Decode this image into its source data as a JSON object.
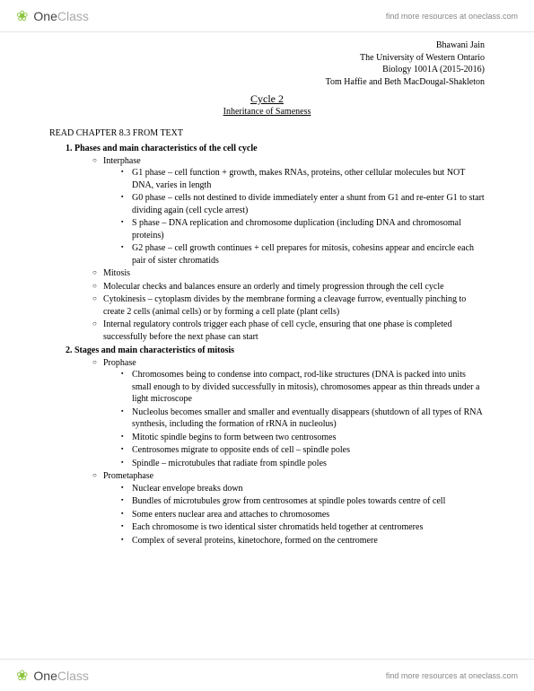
{
  "brand": {
    "one": "One",
    "class": "Class",
    "link": "find more resources at oneclass.com"
  },
  "meta": {
    "author": "Bhawani Jain",
    "university": "The University of Western Ontario",
    "course": "Biology 1001A (2015-2016)",
    "instructors": "Tom Haffie and Beth MacDougal-Shakleton"
  },
  "title": "Cycle 2",
  "subtitle": "Inheritance of Sameness",
  "read_note": "READ CHAPTER 8.3 FROM TEXT",
  "section1": {
    "heading": "Phases and main characteristics of the cell cycle",
    "interphase_label": "Interphase",
    "interphase": {
      "g1": "G1 phase – cell function + growth, makes RNAs, proteins, other cellular molecules but NOT DNA, varies in length",
      "g0": "G0 phase – cells not destined to divide immediately enter a shunt from G1 and re-enter G1 to start dividing again (cell cycle arrest)",
      "s": "S phase – DNA replication and chromosome duplication (including DNA and chromosomal proteins)",
      "g2": "G2 phase – cell growth continues + cell prepares for mitosis, cohesins appear and encircle each pair of sister chromatids"
    },
    "mitosis_label": "Mitosis",
    "checks": "Molecular checks and balances ensure an orderly and timely progression through the cell cycle",
    "cytokinesis": "Cytokinesis – cytoplasm divides by the membrane forming a cleavage furrow, eventually pinching to create 2 cells (animal cells) or by forming a cell plate (plant cells)",
    "regulatory": "Internal regulatory controls trigger each phase of cell cycle, ensuring that one phase is completed successfully before the next phase can start"
  },
  "section2": {
    "heading": "Stages and main characteristics of mitosis",
    "prophase_label": "Prophase",
    "prophase": {
      "p1": "Chromosomes being to condense into compact, rod-like structures (DNA is packed into units small enough to by divided successfully in mitosis), chromosomes appear as thin threads under a light microscope",
      "p2": "Nucleolus becomes smaller and smaller and eventually disappears (shutdown of all types of RNA synthesis, including the formation of rRNA in nucleolus)",
      "p3": "Mitotic spindle begins to form between two centrosomes",
      "p4": "Centrosomes migrate to opposite ends of cell – spindle poles",
      "p5": "Spindle – microtubules that radiate from spindle poles"
    },
    "prometaphase_label": "Prometaphase",
    "prometaphase": {
      "m1": "Nuclear envelope breaks down",
      "m2": "Bundles of microtubules grow from centrosomes at spindle poles towards centre of cell",
      "m3": "Some enters nuclear area and attaches to chromosomes",
      "m4": "Each chromosome is two identical sister chromatids held together at centromeres",
      "m5": "Complex of several proteins, kinetochore, formed on the centromere"
    }
  }
}
